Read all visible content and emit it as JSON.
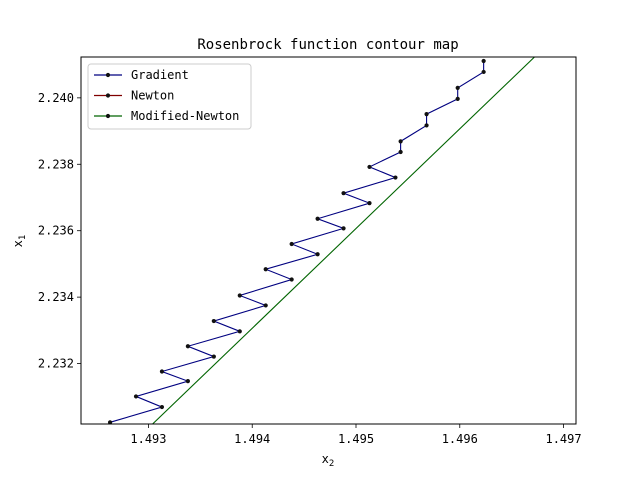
{
  "chart_data": {
    "type": "line",
    "title": "Rosenbrock function contour map",
    "xlabel": "x",
    "xlabel_sub": "2",
    "ylabel": "x",
    "ylabel_sub": "1",
    "xlim": [
      1.49235,
      1.49712
    ],
    "ylim": [
      2.23018,
      2.24123
    ],
    "xticks": [
      {
        "value": 1.493,
        "label": "1.493"
      },
      {
        "value": 1.494,
        "label": "1.494"
      },
      {
        "value": 1.495,
        "label": "1.495"
      },
      {
        "value": 1.496,
        "label": "1.496"
      },
      {
        "value": 1.497,
        "label": "1.497"
      }
    ],
    "yticks": [
      {
        "value": 2.232,
        "label": "2.232"
      },
      {
        "value": 2.234,
        "label": "2.234"
      },
      {
        "value": 2.236,
        "label": "2.236"
      },
      {
        "value": 2.238,
        "label": "2.238"
      },
      {
        "value": 2.24,
        "label": "2.240"
      }
    ],
    "grid": false,
    "legend_position": "top-left",
    "series": [
      {
        "name": "Gradient",
        "color": "#000080",
        "marker": "circle",
        "points": [
          [
            1.49263,
            2.23023
          ],
          [
            1.49313,
            2.23069
          ],
          [
            1.49288,
            2.23101
          ],
          [
            1.49338,
            2.23147
          ],
          [
            1.49313,
            2.23176
          ],
          [
            1.49363,
            2.23221
          ],
          [
            1.49338,
            2.23252
          ],
          [
            1.49388,
            2.23297
          ],
          [
            1.49363,
            2.23328
          ],
          [
            1.49413,
            2.23375
          ],
          [
            1.49388,
            2.23405
          ],
          [
            1.49438,
            2.23453
          ],
          [
            1.49413,
            2.23484
          ],
          [
            1.49463,
            2.23529
          ],
          [
            1.49438,
            2.2356
          ],
          [
            1.49488,
            2.23607
          ],
          [
            1.49463,
            2.23636
          ],
          [
            1.49513,
            2.23683
          ],
          [
            1.49488,
            2.23713
          ],
          [
            1.49538,
            2.2376
          ],
          [
            1.49513,
            2.23792
          ],
          [
            1.49543,
            2.23837
          ],
          [
            1.49543,
            2.23869
          ],
          [
            1.49568,
            2.23917
          ],
          [
            1.49568,
            2.23951
          ],
          [
            1.49598,
            2.23997
          ],
          [
            1.49598,
            2.2403
          ],
          [
            1.49623,
            2.24078
          ],
          [
            1.49623,
            2.24111
          ]
        ]
      },
      {
        "name": "Newton",
        "color": "#800000",
        "marker": "circle",
        "points": []
      },
      {
        "name": "Modified-Newton",
        "color": "#006400",
        "marker": "circle",
        "points": [
          [
            1.49304,
            2.23018
          ],
          [
            1.49672,
            2.24123
          ]
        ]
      }
    ]
  }
}
